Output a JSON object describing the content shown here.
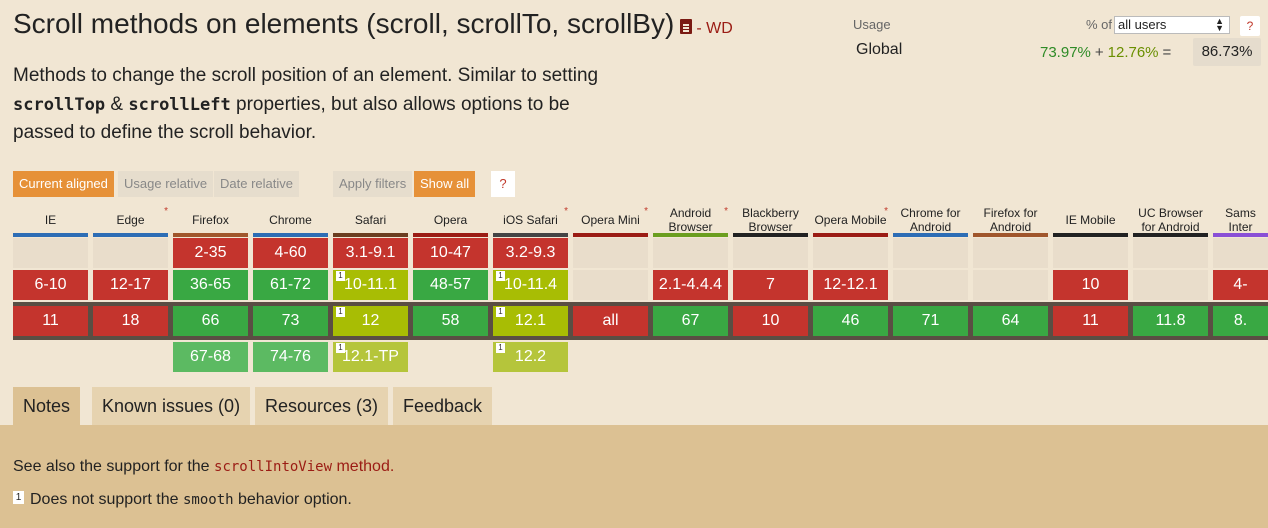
{
  "header": {
    "title": "Scroll methods on elements (scroll, scrollTo, scrollBy)",
    "status": "- WD",
    "description_parts": [
      "Methods to change the scroll position of an element. Similar to setting ",
      "scrollTop",
      " & ",
      "scrollLeft",
      " properties, but also allows options to be passed to define the scroll behavior."
    ]
  },
  "usage": {
    "label": "Usage",
    "pct_of_label": "% of",
    "select_value": "all users",
    "help": "?",
    "region": "Global",
    "full": "73.97%",
    "plus": "+",
    "partial": "12.76%",
    "equals": "=",
    "total": "86.73%"
  },
  "filters": {
    "current_aligned": "Current aligned",
    "usage_relative": "Usage relative",
    "date_relative": "Date relative",
    "apply_filters": "Apply filters",
    "show_all": "Show all",
    "help": "?"
  },
  "colors": {
    "unsupported": "#c4342d",
    "supported": "#39a843",
    "partial": "#a8bd04",
    "tab_background": "#dcc193",
    "accent": "#e69138"
  },
  "browsers": [
    {
      "name": "IE",
      "star": "",
      "bar": "#2d6db5",
      "cells": [
        "",
        "6-10",
        "11",
        ""
      ],
      "states": [
        "e",
        "n",
        "n",
        ""
      ],
      "notes": [
        "",
        "",
        "",
        ""
      ]
    },
    {
      "name": "Edge",
      "star": "*",
      "bar": "#2d6db5",
      "cells": [
        "",
        "12-17",
        "18",
        ""
      ],
      "states": [
        "e",
        "n",
        "n",
        ""
      ],
      "notes": [
        "",
        "",
        "",
        ""
      ]
    },
    {
      "name": "Firefox",
      "star": "",
      "bar": "#a0562c",
      "cells": [
        "2-35",
        "36-65",
        "66",
        "67-68"
      ],
      "states": [
        "n",
        "y",
        "y",
        "yl"
      ],
      "notes": [
        "",
        "",
        "",
        ""
      ]
    },
    {
      "name": "Chrome",
      "star": "",
      "bar": "#2d6db5",
      "cells": [
        "4-60",
        "61-72",
        "73",
        "74-76"
      ],
      "states": [
        "n",
        "y",
        "y",
        "yl"
      ],
      "notes": [
        "",
        "",
        "",
        ""
      ]
    },
    {
      "name": "Safari",
      "star": "",
      "bar": "#6b3d20",
      "cells": [
        "3.1-9.1",
        "10-11.1",
        "12",
        "12.1-TP"
      ],
      "states": [
        "n",
        "a",
        "a",
        "al"
      ],
      "notes": [
        "",
        "1",
        "1",
        "1"
      ]
    },
    {
      "name": "Opera",
      "star": "",
      "bar": "#9b1c14",
      "cells": [
        "10-47",
        "48-57",
        "58",
        ""
      ],
      "states": [
        "n",
        "y",
        "y",
        ""
      ],
      "notes": [
        "",
        "",
        "",
        ""
      ]
    },
    {
      "name": "iOS Safari",
      "star": "*",
      "bar": "#444444",
      "cells": [
        "3.2-9.3",
        "10-11.4",
        "12.1",
        "12.2"
      ],
      "states": [
        "n",
        "a",
        "a",
        "al"
      ],
      "notes": [
        "",
        "1",
        "1",
        "1"
      ]
    },
    {
      "name": "Opera Mini",
      "star": "*",
      "bar": "#9b1c14",
      "cells": [
        "",
        "",
        "all",
        ""
      ],
      "states": [
        "e",
        "e",
        "n",
        ""
      ],
      "notes": [
        "",
        "",
        "",
        ""
      ]
    },
    {
      "name": "Android Browser",
      "star": "*",
      "bar": "#6b9e1f",
      "cells": [
        "",
        "2.1-4.4.4",
        "67",
        ""
      ],
      "states": [
        "e",
        "n",
        "y",
        ""
      ],
      "notes": [
        "",
        "",
        "",
        ""
      ]
    },
    {
      "name": "Blackberry Browser",
      "star": "",
      "bar": "#222222",
      "cells": [
        "",
        "7",
        "10",
        ""
      ],
      "states": [
        "e",
        "n",
        "n",
        ""
      ],
      "notes": [
        "",
        "",
        "",
        ""
      ]
    },
    {
      "name": "Opera Mobile",
      "star": "*",
      "bar": "#9b1c14",
      "cells": [
        "",
        "12-12.1",
        "46",
        ""
      ],
      "states": [
        "e",
        "n",
        "y",
        ""
      ],
      "notes": [
        "",
        "",
        "",
        ""
      ]
    },
    {
      "name": "Chrome for Android",
      "star": "",
      "bar": "#2d6db5",
      "cells": [
        "",
        "",
        "71",
        ""
      ],
      "states": [
        "e",
        "e",
        "y",
        ""
      ],
      "notes": [
        "",
        "",
        "",
        ""
      ]
    },
    {
      "name": "Firefox for Android",
      "star": "",
      "bar": "#a0562c",
      "cells": [
        "",
        "",
        "64",
        ""
      ],
      "states": [
        "e",
        "e",
        "y",
        ""
      ],
      "notes": [
        "",
        "",
        "",
        ""
      ]
    },
    {
      "name": "IE Mobile",
      "star": "",
      "bar": "#222222",
      "cells": [
        "",
        "10",
        "11",
        ""
      ],
      "states": [
        "e",
        "n",
        "n",
        ""
      ],
      "notes": [
        "",
        "",
        "",
        ""
      ]
    },
    {
      "name": "UC Browser for Android",
      "star": "",
      "bar": "#222222",
      "cells": [
        "",
        "",
        "11.8",
        ""
      ],
      "states": [
        "e",
        "e",
        "y",
        ""
      ],
      "notes": [
        "",
        "",
        "",
        ""
      ]
    },
    {
      "name": "Sams Inter",
      "star": "",
      "bar": "#8a4fd6",
      "cells": [
        "",
        "4-",
        "8.",
        ""
      ],
      "states": [
        "e",
        "n",
        "y",
        ""
      ],
      "notes": [
        "",
        "",
        "",
        ""
      ]
    }
  ],
  "tabs": [
    "Notes",
    "Known issues (0)",
    "Resources (3)",
    "Feedback"
  ],
  "notes": {
    "line1_prefix": "See also the support for the ",
    "line1_code": "scrollIntoView",
    "line1_suffix": " method.",
    "line2_num": "1",
    "line2_prefix": "Does not support the ",
    "line2_code": "smooth",
    "line2_suffix": " behavior option."
  }
}
